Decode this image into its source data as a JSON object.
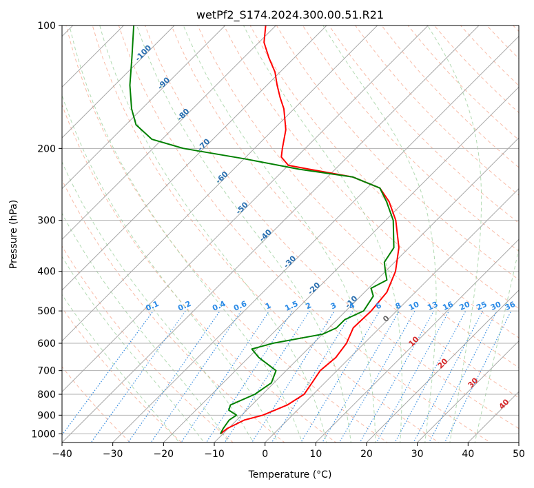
{
  "chart_data": {
    "type": "line",
    "subtype": "skew-T log-P diagram",
    "title": "wetPf2_S174.2024.300.00.51.R21",
    "xlabel": "Temperature (°C)",
    "ylabel": "Pressure (hPa)",
    "xlim": [
      -40,
      50
    ],
    "ylim": [
      1050,
      100
    ],
    "y_scale": "log",
    "grid": true,
    "x_ticks": [
      -40,
      -30,
      -20,
      -10,
      0,
      10,
      20,
      30,
      40,
      50
    ],
    "x_tick_labels": [
      "−40",
      "−30",
      "−20",
      "−10",
      "0",
      "10",
      "20",
      "30",
      "40",
      "50"
    ],
    "y_ticks": [
      1000,
      900,
      800,
      700,
      600,
      500,
      400,
      300,
      200,
      100
    ],
    "y_tick_labels": [
      "1000",
      "900",
      "800",
      "700",
      "600",
      "500",
      "400",
      "300",
      "200",
      "100"
    ],
    "series": [
      {
        "color": "#ff0000",
        "points": [
          [
            1000,
            -10.5
          ],
          [
            970,
            -10.2
          ],
          [
            925,
            -8.5
          ],
          [
            900,
            -5.8
          ],
          [
            850,
            -3.0
          ],
          [
            800,
            -1.8
          ],
          [
            750,
            -2.5
          ],
          [
            700,
            -3.3
          ],
          [
            650,
            -2.8
          ],
          [
            600,
            -3.5
          ],
          [
            550,
            -5.2
          ],
          [
            500,
            -5.0
          ],
          [
            450,
            -5.6
          ],
          [
            400,
            -8.0
          ],
          [
            350,
            -12.0
          ],
          [
            300,
            -18.0
          ],
          [
            270,
            -23.0
          ],
          [
            250,
            -27.5
          ],
          [
            235,
            -35.0
          ],
          [
            225,
            -45.0
          ],
          [
            220,
            -50.0
          ],
          [
            210,
            -53.0
          ],
          [
            200,
            -54.5
          ],
          [
            180,
            -57.5
          ],
          [
            160,
            -62.0
          ],
          [
            150,
            -65.0
          ],
          [
            140,
            -68.0
          ],
          [
            130,
            -71.0
          ],
          [
            120,
            -75.0
          ],
          [
            110,
            -79.0
          ],
          [
            100,
            -82.0
          ]
        ]
      },
      {
        "color": "#008000",
        "points": [
          [
            1000,
            -10.5
          ],
          [
            970,
            -11.0
          ],
          [
            925,
            -11.5
          ],
          [
            900,
            -11.0
          ],
          [
            875,
            -13.5
          ],
          [
            850,
            -14.2
          ],
          [
            800,
            -11.5
          ],
          [
            750,
            -10.5
          ],
          [
            700,
            -12.0
          ],
          [
            650,
            -18.0
          ],
          [
            620,
            -21.0
          ],
          [
            600,
            -18.0
          ],
          [
            570,
            -10.0
          ],
          [
            550,
            -8.5
          ],
          [
            525,
            -8.5
          ],
          [
            500,
            -6.5
          ],
          [
            460,
            -7.5
          ],
          [
            440,
            -9.5
          ],
          [
            420,
            -8.0
          ],
          [
            400,
            -10.0
          ],
          [
            380,
            -12.0
          ],
          [
            350,
            -13.0
          ],
          [
            300,
            -18.5
          ],
          [
            270,
            -23.5
          ],
          [
            250,
            -27.5
          ],
          [
            235,
            -35.0
          ],
          [
            225,
            -47.0
          ],
          [
            212,
            -60.0
          ],
          [
            200,
            -74.0
          ],
          [
            190,
            -82.0
          ],
          [
            175,
            -88.0
          ],
          [
            160,
            -92.0
          ],
          [
            140,
            -97.0
          ],
          [
            120,
            -102.0
          ],
          [
            100,
            -108.0
          ]
        ]
      }
    ],
    "overlays": {
      "isotherm_labels": [
        "-100",
        "-90",
        "-80",
        "-70",
        "-60",
        "-50",
        "-40",
        "-30",
        "-20",
        "-10"
      ],
      "mixing_ratio_labels": [
        "0.1",
        "0.2",
        "0.4",
        "0.6",
        "1",
        "1.5",
        "2",
        "3",
        "4",
        "6",
        "8",
        "10",
        "13",
        "16",
        "20",
        "25",
        "30",
        "36"
      ],
      "moist_adiabat_labels": [
        "0",
        "10",
        "20",
        "30",
        "40"
      ]
    }
  }
}
